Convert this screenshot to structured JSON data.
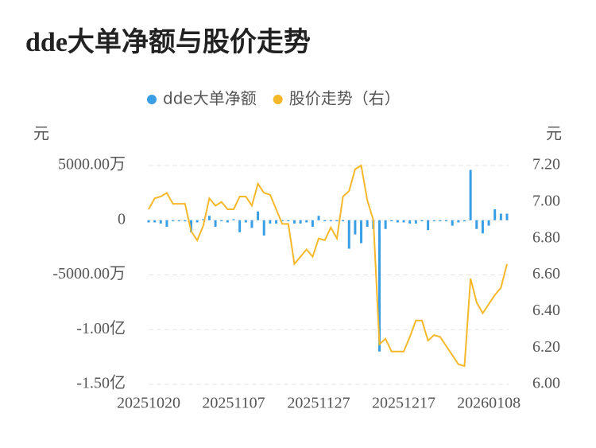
{
  "chart_data": {
    "type": "bar-line",
    "title": "dde大单净额与股价走势",
    "y_label": "元",
    "y2_label": "元",
    "categories": [
      "20251020",
      null,
      null,
      null,
      null,
      null,
      null,
      null,
      null,
      null,
      null,
      null,
      null,
      null,
      "20251107",
      null,
      null,
      null,
      null,
      null,
      null,
      null,
      null,
      null,
      null,
      null,
      null,
      null,
      "20251127",
      null,
      null,
      null,
      null,
      null,
      null,
      null,
      null,
      null,
      null,
      null,
      null,
      null,
      "20251217",
      null,
      null,
      null,
      null,
      null,
      null,
      null,
      null,
      null,
      null,
      null,
      null,
      null,
      "20260108",
      null,
      null,
      null
    ],
    "series": [
      {
        "name": "dde大单净额",
        "type": "bar",
        "color": "#3a9ee4",
        "values": [
          -200,
          -200,
          -300,
          -600,
          -100,
          -100,
          -100,
          -1100,
          -200,
          100,
          400,
          -600,
          -100,
          -200,
          100,
          -1100,
          -200,
          -700,
          800,
          -1400,
          -300,
          -300,
          -100,
          -100,
          -300,
          -300,
          -200,
          -600,
          400,
          -100,
          -100,
          -100,
          -100,
          -2600,
          -1300,
          -2100,
          -600,
          -800,
          -12000,
          -800,
          -100,
          -200,
          -200,
          -300,
          -300,
          -100,
          -900,
          -100,
          -100,
          -100,
          -500,
          -200,
          -100,
          4600,
          -800,
          -1200,
          -500,
          1000,
          600,
          600
        ]
      },
      {
        "name": "股价走势（右）",
        "type": "line",
        "axis": "y2",
        "color": "#f5b82a",
        "values": [
          6.96,
          7.02,
          7.03,
          7.05,
          6.99,
          6.99,
          6.99,
          6.84,
          6.79,
          6.87,
          7.02,
          6.98,
          7.0,
          6.96,
          6.96,
          7.03,
          7.03,
          6.98,
          7.1,
          7.05,
          7.04,
          6.96,
          6.88,
          6.88,
          6.66,
          6.7,
          6.74,
          6.7,
          6.8,
          6.79,
          6.86,
          6.8,
          7.03,
          7.06,
          7.18,
          7.2,
          7.01,
          6.9,
          6.22,
          6.25,
          6.18,
          6.18,
          6.18,
          6.26,
          6.35,
          6.35,
          6.24,
          6.27,
          6.26,
          6.21,
          6.16,
          6.11,
          6.1,
          6.58,
          6.45,
          6.39,
          6.44,
          6.49,
          6.53,
          6.66
        ]
      }
    ],
    "ylim": [
      -15000,
      5000
    ],
    "yticks": [
      {
        "value": 5000,
        "label": "5000.00万"
      },
      0,
      {
        "value": -5000,
        "label": "-5000.00万"
      },
      {
        "value": -10000,
        "label": "-1.00亿"
      },
      {
        "value": -15000,
        "label": "-1.50亿"
      }
    ],
    "y2lim": [
      6.0,
      7.2
    ],
    "y2ticks": [
      {
        "value": 7.2,
        "label": "7.20"
      },
      {
        "value": 7.0,
        "label": "7.00"
      },
      {
        "value": 6.8,
        "label": "6.80"
      },
      {
        "value": 6.6,
        "label": "6.60"
      },
      {
        "value": 6.4,
        "label": "6.40"
      },
      {
        "value": 6.2,
        "label": "6.20"
      },
      {
        "value": 6.0,
        "label": "6.00"
      }
    ],
    "grid": true,
    "legend": "top"
  }
}
